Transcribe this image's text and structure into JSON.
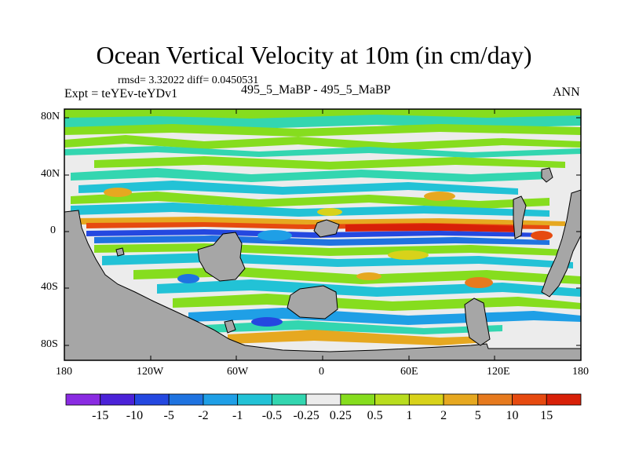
{
  "title": "Ocean Vertical Velocity at 10m (in cm/day)",
  "stats": "rmsd= 3.32022 diff= 0.0450531",
  "expt_label": "Expt = teYEv-teYDv1",
  "cases": "495_5_MaBP - 495_5_MaBP",
  "season": "ANN",
  "lat_ticks": [
    "80N",
    "40N",
    "0",
    "40S",
    "80S"
  ],
  "lon_ticks": [
    "180",
    "120W",
    "60W",
    "0",
    "60E",
    "120E",
    "180"
  ],
  "colorbar": {
    "labels": [
      "-15",
      "-10",
      "-5",
      "-2",
      "-1",
      "-0.5",
      "-0.25",
      "0.25",
      "0.5",
      "1",
      "2",
      "5",
      "10",
      "15"
    ],
    "colors": [
      "#8a2be2",
      "#4b22d8",
      "#2448e0",
      "#1f73e0",
      "#1f9fe6",
      "#22c2d6",
      "#33d6b0",
      "#ececec",
      "#86dd1e",
      "#b9dd1e",
      "#d8d21a",
      "#e6a820",
      "#e67a1e",
      "#e64a10",
      "#d82008"
    ]
  },
  "map": {
    "land_color": "#a6a6a6",
    "ocean_background": "#ececec"
  }
}
